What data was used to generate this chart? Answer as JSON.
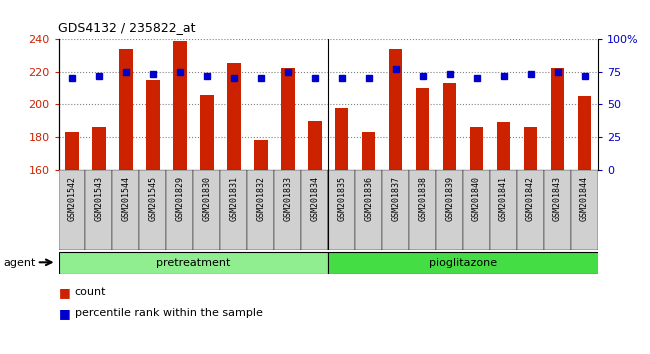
{
  "title": "GDS4132 / 235822_at",
  "samples": [
    "GSM201542",
    "GSM201543",
    "GSM201544",
    "GSM201545",
    "GSM201829",
    "GSM201830",
    "GSM201831",
    "GSM201832",
    "GSM201833",
    "GSM201834",
    "GSM201835",
    "GSM201836",
    "GSM201837",
    "GSM201838",
    "GSM201839",
    "GSM201840",
    "GSM201841",
    "GSM201842",
    "GSM201843",
    "GSM201844"
  ],
  "counts": [
    183,
    186,
    234,
    215,
    239,
    206,
    225,
    178,
    222,
    190,
    198,
    183,
    234,
    210,
    213,
    186,
    189,
    186,
    222,
    205
  ],
  "percentiles": [
    70,
    72,
    75,
    73,
    75,
    72,
    70,
    70,
    75,
    70,
    70,
    70,
    77,
    72,
    73,
    70,
    72,
    73,
    75,
    72
  ],
  "group_labels": [
    "pretreatment",
    "pioglitazone"
  ],
  "group_ranges": [
    [
      0,
      10
    ],
    [
      10,
      20
    ]
  ],
  "group_colors": [
    "#90EE90",
    "#44DD44"
  ],
  "ylim_left": [
    160,
    240
  ],
  "ylim_right": [
    0,
    100
  ],
  "yticks_left": [
    160,
    180,
    200,
    220,
    240
  ],
  "yticks_right": [
    0,
    25,
    50,
    75,
    100
  ],
  "bar_color": "#CC2200",
  "dot_color": "#0000CC",
  "bar_bottom": 160,
  "agent_label": "agent",
  "legend_count_label": "count",
  "legend_pct_label": "percentile rank within the sample",
  "right_axis_label_color": "#0000CC",
  "left_axis_label_color": "#CC2200",
  "tick_bg_color": "#D0D0D0"
}
